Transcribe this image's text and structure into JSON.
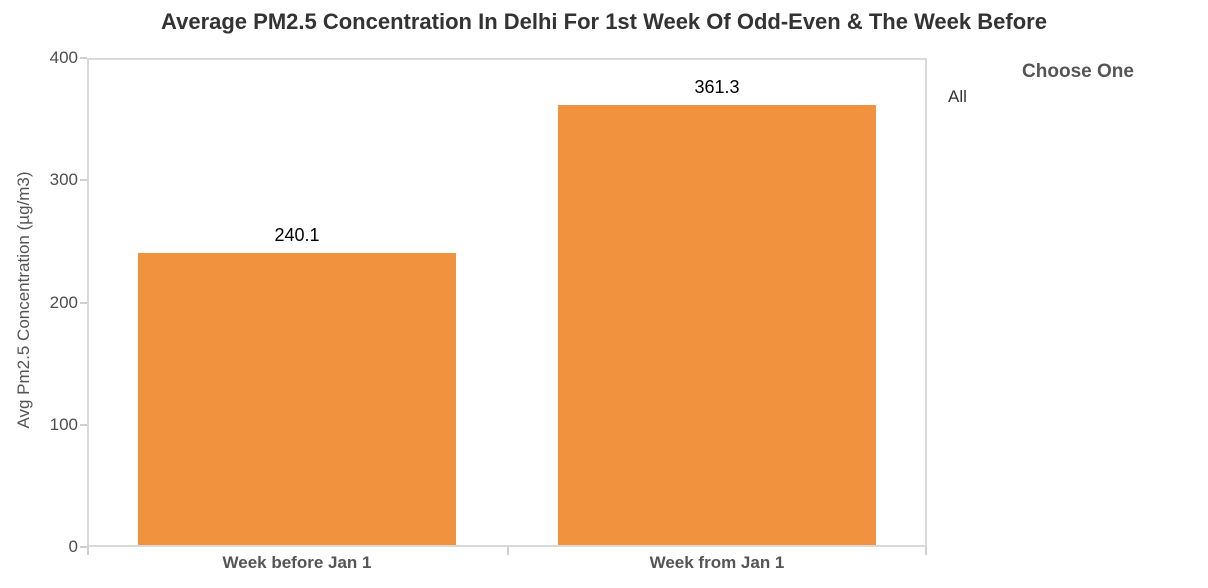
{
  "title": "Average PM2.5 Concentration In Delhi For 1st Week Of Odd-Even & The Week Before",
  "filter": {
    "title": "Choose One",
    "options": [
      "All"
    ]
  },
  "colors": {
    "bar": "#F0923E",
    "axis_line": "#d9d9d9",
    "tick_mark": "#d0d0d0",
    "title_text": "#333333",
    "axis_text": "#4e4e4e",
    "label_text": "#555555",
    "value_text": "#000000"
  },
  "chart_data": {
    "type": "bar",
    "title": "Average PM2.5 Concentration In Delhi For 1st Week Of Odd-Even & The Week Before",
    "categories": [
      "Week before Jan 1",
      "Week from Jan 1"
    ],
    "values": [
      240.1,
      361.3
    ],
    "value_labels": [
      "240.1",
      "361.3"
    ],
    "xlabel": "",
    "ylabel": "Avg Pm2.5 Concentration (µg/m3)",
    "ylim": [
      0,
      400
    ],
    "yticks": [
      0,
      100,
      200,
      300,
      400
    ],
    "grid": false,
    "legend_position": "none",
    "bar_color": "#F0923E"
  }
}
